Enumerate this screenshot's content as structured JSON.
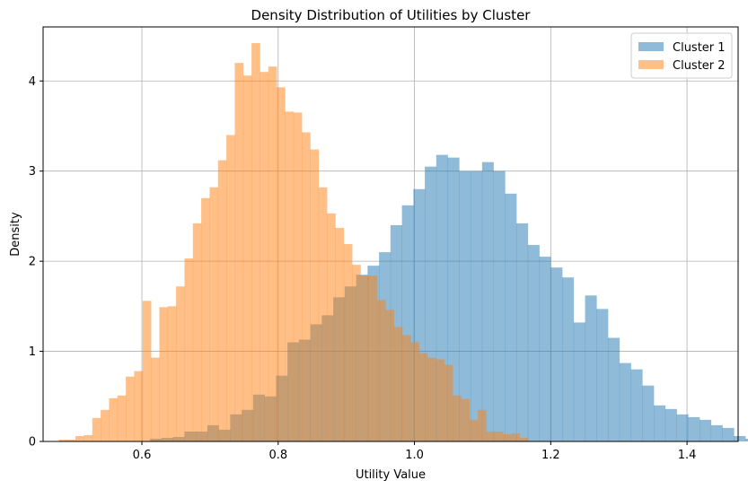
{
  "chart_data": {
    "type": "histogram",
    "title": "Density Distribution of Utilities by Cluster",
    "xlabel": "Utility Value",
    "ylabel": "Density",
    "xlim": [
      0.455,
      1.475
    ],
    "ylim": [
      0,
      4.6
    ],
    "xticks": [
      0.6,
      0.8,
      1.0,
      1.2,
      1.4
    ],
    "xtick_labels": [
      "0.6",
      "0.8",
      "1.0",
      "1.2",
      "1.4"
    ],
    "yticks": [
      0,
      1,
      2,
      3,
      4
    ],
    "ytick_labels": [
      "0",
      "1",
      "2",
      "3",
      "4"
    ],
    "grid": true,
    "legend_position": "top-right",
    "bar_opacity": 0.5,
    "series": [
      {
        "name": "Cluster 1",
        "color": "#1f77b4",
        "bin_start": 0.612,
        "bin_width": 0.0168,
        "values": [
          0.03,
          0.04,
          0.05,
          0.11,
          0.11,
          0.18,
          0.13,
          0.3,
          0.35,
          0.52,
          0.5,
          0.73,
          1.1,
          1.13,
          1.3,
          1.4,
          1.6,
          1.72,
          1.85,
          1.95,
          2.1,
          2.4,
          2.62,
          2.8,
          3.05,
          3.18,
          3.15,
          3.0,
          3.0,
          3.1,
          3.0,
          2.75,
          2.42,
          2.18,
          2.05,
          1.93,
          1.82,
          1.32,
          1.62,
          1.47,
          1.15,
          0.87,
          0.8,
          0.62,
          0.4,
          0.36,
          0.3,
          0.27,
          0.24,
          0.18,
          0.15,
          0.06,
          0.03,
          0.03,
          0.03
        ]
      },
      {
        "name": "Cluster 2",
        "color": "#ff7f0e",
        "bin_start": 0.478,
        "bin_width": 0.0123,
        "values": [
          0.02,
          0.02,
          0.06,
          0.07,
          0.26,
          0.35,
          0.48,
          0.51,
          0.72,
          0.78,
          1.56,
          0.93,
          1.49,
          1.5,
          1.72,
          2.03,
          2.42,
          2.7,
          2.82,
          3.12,
          3.4,
          4.2,
          4.06,
          4.42,
          4.1,
          4.16,
          3.93,
          3.66,
          3.65,
          3.43,
          3.24,
          2.82,
          2.53,
          2.37,
          2.19,
          1.96,
          1.84,
          1.84,
          1.57,
          1.46,
          1.27,
          1.18,
          1.1,
          0.98,
          0.93,
          0.91,
          0.85,
          0.51,
          0.47,
          0.24,
          0.35,
          0.11,
          0.11,
          0.08,
          0.09,
          0.04
        ]
      }
    ]
  }
}
